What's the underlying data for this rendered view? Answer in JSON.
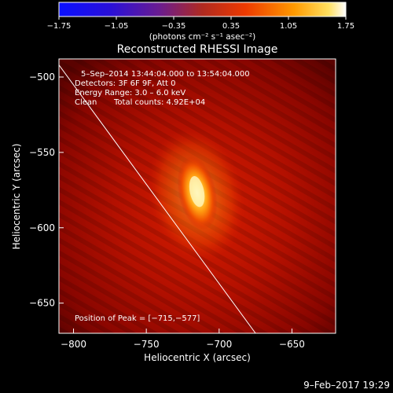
{
  "chart_data": {
    "type": "heatmap",
    "title": "Reconstructed RHESSI Image",
    "xlabel": "Heliocentric X (arcsec)",
    "ylabel": "Heliocentric Y (arcsec)",
    "xlim": [
      -810,
      -620
    ],
    "ylim": [
      -670,
      -488
    ],
    "x_ticks": [
      -800,
      -750,
      -700,
      -650
    ],
    "x_tick_labels": [
      "−800",
      "−750",
      "−700",
      "−650"
    ],
    "y_ticks": [
      -500,
      -550,
      -600,
      -650
    ],
    "y_tick_labels": [
      "−500",
      "−550",
      "−600",
      "−650"
    ],
    "colorbar": {
      "min": -1.75,
      "max": 1.75,
      "ticks": [
        -1.75,
        -1.05,
        -0.35,
        0.35,
        1.05,
        1.75
      ],
      "tick_labels": [
        "−1.75",
        "−1.05",
        "−0.35",
        "0.35",
        "1.05",
        "1.75"
      ],
      "unit_text": "(photons cm⁻² s⁻¹ asec⁻²)"
    },
    "annotations": [
      "5–Sep–2014 13:44:04.000 to 13:54:04.000",
      "Detectors: 3F 6F 9F, Att 0",
      "Energy Range: 3.0 – 6.0 keV",
      "Clean",
      "Total counts: 4.92E+04"
    ],
    "peak_label": "Position of Peak = [−715,−577]",
    "peak": {
      "x": -715,
      "y": -577
    },
    "limb_line": [
      [
        -810,
        -492
      ],
      [
        -675,
        -670
      ]
    ],
    "footer_date": "9–Feb–2017 19:29"
  }
}
